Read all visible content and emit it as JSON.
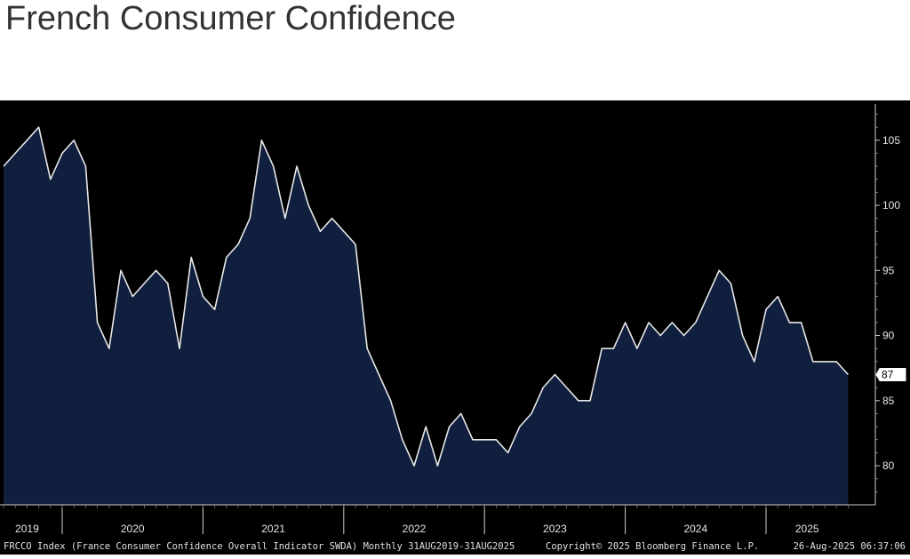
{
  "title": "French Consumer Confidence",
  "footer": {
    "left": "FRCCO Index (France Consumer Confidence Overall Indicator SWDA)  Monthly 31AUG2019-31AUG2025",
    "center": "Copyright© 2025 Bloomberg Finance L.P.",
    "right": "26-Aug-2025 06:37:06"
  },
  "colors": {
    "background": "#000000",
    "area_fill": "#0f1f3d",
    "line": "#e8e8e8"
  },
  "chart_data": {
    "type": "area",
    "title": "French Consumer Confidence",
    "xlabel": "",
    "ylabel": "",
    "x_start": "2019-08",
    "x_end": "2025-08",
    "ylim": [
      77,
      108
    ],
    "yticks": [
      80,
      85,
      90,
      95,
      100,
      105
    ],
    "year_labels": [
      "2019",
      "2020",
      "2021",
      "2022",
      "2023",
      "2024",
      "2025"
    ],
    "last_value_label": "87",
    "grid": false,
    "series": [
      {
        "values": [
          103,
          104,
          105,
          106,
          102,
          104,
          105,
          103,
          91,
          89,
          95,
          93,
          94,
          95,
          94,
          89,
          96,
          93,
          92,
          96,
          97,
          99,
          105,
          103,
          99,
          103,
          100,
          98,
          99,
          98,
          97,
          89,
          87,
          85,
          82,
          80,
          83,
          80,
          83,
          84,
          82,
          82,
          82,
          81,
          83,
          84,
          86,
          87,
          86,
          85,
          85,
          89,
          89,
          91,
          89,
          91,
          90,
          91,
          90,
          91,
          93,
          95,
          94,
          90,
          88,
          92,
          93,
          91,
          91,
          88,
          88,
          88,
          87
        ]
      }
    ]
  }
}
